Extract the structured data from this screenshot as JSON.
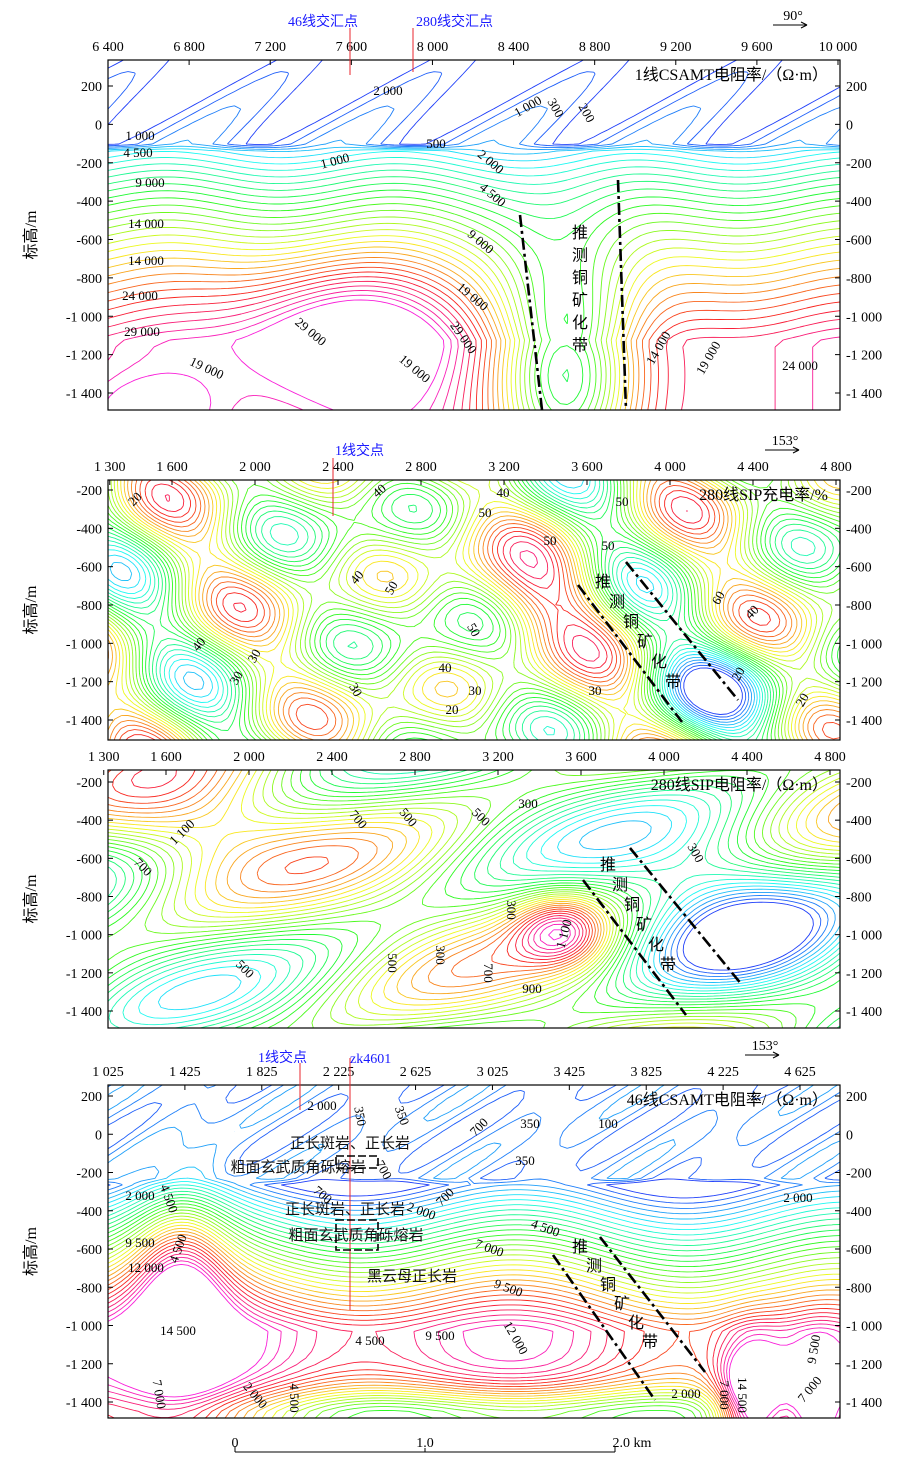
{
  "ylabel": "标高/m",
  "panels": [
    {
      "title": "1线CSAMT电阻率/（Ω·m）",
      "direction": "90°",
      "markers": [
        "46线交汇点",
        "280线交汇点"
      ],
      "x_ticks": [
        "6 400",
        "6 800",
        "7 200",
        "7 600",
        "8 000",
        "8 400",
        "8 800",
        "9 200",
        "9 600",
        "10 000"
      ],
      "y_ticks": [
        "200",
        "0",
        "-200",
        "-400",
        "-600",
        "-800",
        "-1 000",
        "-1 200",
        "-1 400"
      ],
      "contour_labels": [
        "2 000",
        "1 000",
        "300",
        "200",
        "1 000",
        "4 500",
        "500",
        "1 000",
        "2 000",
        "4 500",
        "9 000",
        "9 000",
        "14 000",
        "19 000",
        "14 000",
        "24 000",
        "29 000",
        "29 000",
        "19 000",
        "29 000",
        "19 000",
        "14 000",
        "19 000",
        "24 000"
      ],
      "zone_label": "推测铜矿化带"
    },
    {
      "title": "280线SIP充电率/%",
      "direction": "153°",
      "markers": [
        "1线交点"
      ],
      "x_ticks": [
        "1 300",
        "1 600",
        "2 000",
        "2 400",
        "2 800",
        "3 200",
        "3 600",
        "4 000",
        "4 400",
        "4 800"
      ],
      "y_ticks": [
        "-200",
        "-400",
        "-600",
        "-800",
        "-1 000",
        "-1 200",
        "-1 400"
      ],
      "contour_labels": [
        "20",
        "40",
        "40",
        "50",
        "50",
        "50",
        "50",
        "40",
        "50",
        "50",
        "60",
        "40",
        "40",
        "30",
        "30",
        "40",
        "30",
        "30",
        "20",
        "30",
        "20",
        "20"
      ],
      "zone_label": "推测铜矿化带"
    },
    {
      "title": "280线SIP电阻率/（Ω·m）",
      "x_ticks": [
        "1 300",
        "1 600",
        "2 000",
        "2 400",
        "2 800",
        "3 200",
        "3 600",
        "4 000",
        "4 400",
        "4 800"
      ],
      "y_ticks": [
        "-200",
        "-400",
        "-600",
        "-800",
        "-1 000",
        "-1 200",
        "-1 400"
      ],
      "contour_labels": [
        "1 100",
        "700",
        "700",
        "500",
        "500",
        "300",
        "300",
        "500",
        "500",
        "300",
        "700",
        "1 100",
        "900",
        "300"
      ],
      "zone_label": "推测铜矿化带"
    },
    {
      "title": "46线CSAMT电阻率/（Ω·m）",
      "direction": "153°",
      "markers": [
        "1线交点",
        "zk4601"
      ],
      "x_ticks": [
        "1 025",
        "1 425",
        "1 825",
        "2 225",
        "2 625",
        "3 025",
        "3 425",
        "3 825",
        "4 225",
        "4 625"
      ],
      "y_ticks": [
        "200",
        "0",
        "-200",
        "-400",
        "-600",
        "-800",
        "-1 000",
        "-1 200",
        "-1 400"
      ],
      "contour_labels": [
        "2 000",
        "350",
        "350",
        "700",
        "350",
        "100",
        "700",
        "350",
        "700",
        "700",
        "2 000",
        "2 000",
        "4 500",
        "4 500",
        "9 500",
        "12 000",
        "4 500",
        "7 000",
        "9 500",
        "14 500",
        "4 500",
        "9 500",
        "12 000",
        "2 000",
        "7 000",
        "2 000",
        "4 500",
        "14 500",
        "7 000",
        "9 500",
        "7 000",
        "2 000"
      ],
      "lithology": [
        "正长斑岩、正长岩",
        "粗面玄武质角砾熔岩",
        "正长斑岩、正长岩",
        "粗面玄武质角砾熔岩",
        "黑云母正长岩"
      ],
      "zone_label": "推测铜矿化带"
    }
  ],
  "scale_bar": {
    "labels": [
      "0",
      "1.0",
      "2.0 km"
    ]
  }
}
